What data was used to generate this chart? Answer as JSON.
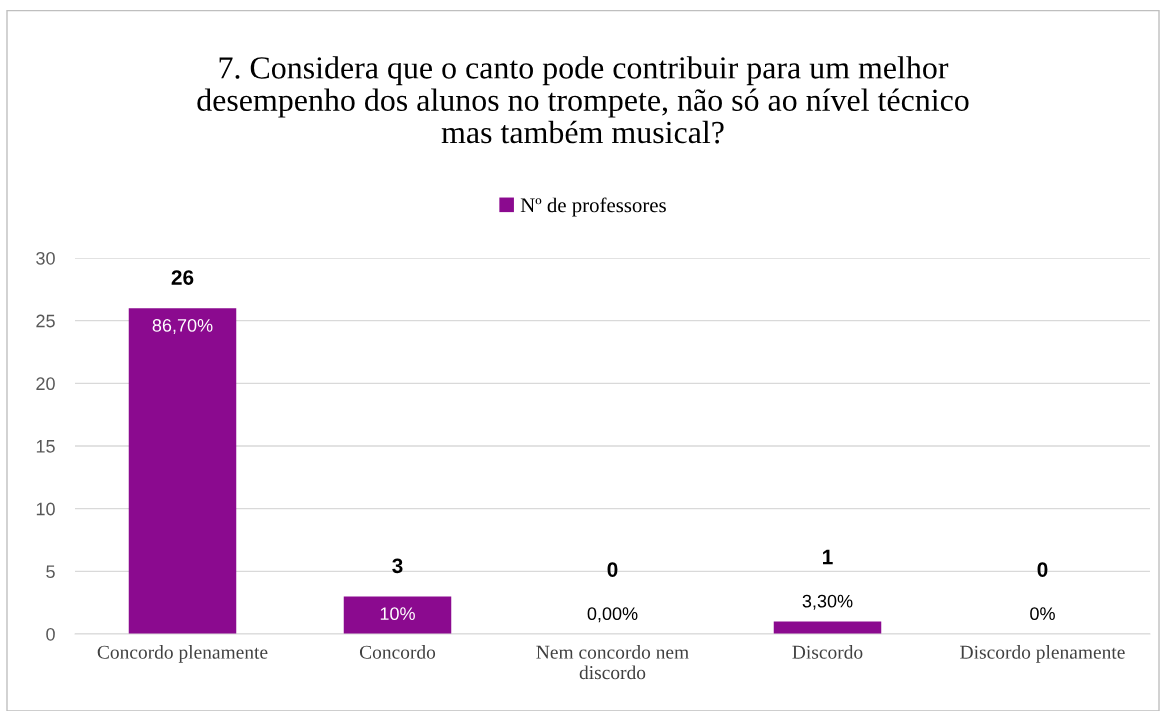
{
  "chart_data": {
    "type": "bar",
    "title": "7. Considera que o canto pode contribuir para um melhor\ndesempenho dos alunos no trompete, não só ao nível técnico\nmas também musical?",
    "categories": [
      "Concordo plenamente",
      "Concordo",
      "Nem concordo nem\ndiscordo",
      "Discordo",
      "Discordo plenamente"
    ],
    "series": [
      {
        "name": "Nº de professores",
        "color": "#8b0a8f",
        "values": [
          26,
          3,
          0,
          1,
          0
        ]
      }
    ],
    "ylim": [
      0,
      30
    ],
    "yticks": [
      0,
      5,
      10,
      15,
      20,
      25,
      30
    ],
    "grid": "y",
    "legend": "top",
    "data_labels": true,
    "annotations": [
      "86,70%",
      "10%",
      "0,00%",
      "3,30%",
      "0%"
    ]
  }
}
